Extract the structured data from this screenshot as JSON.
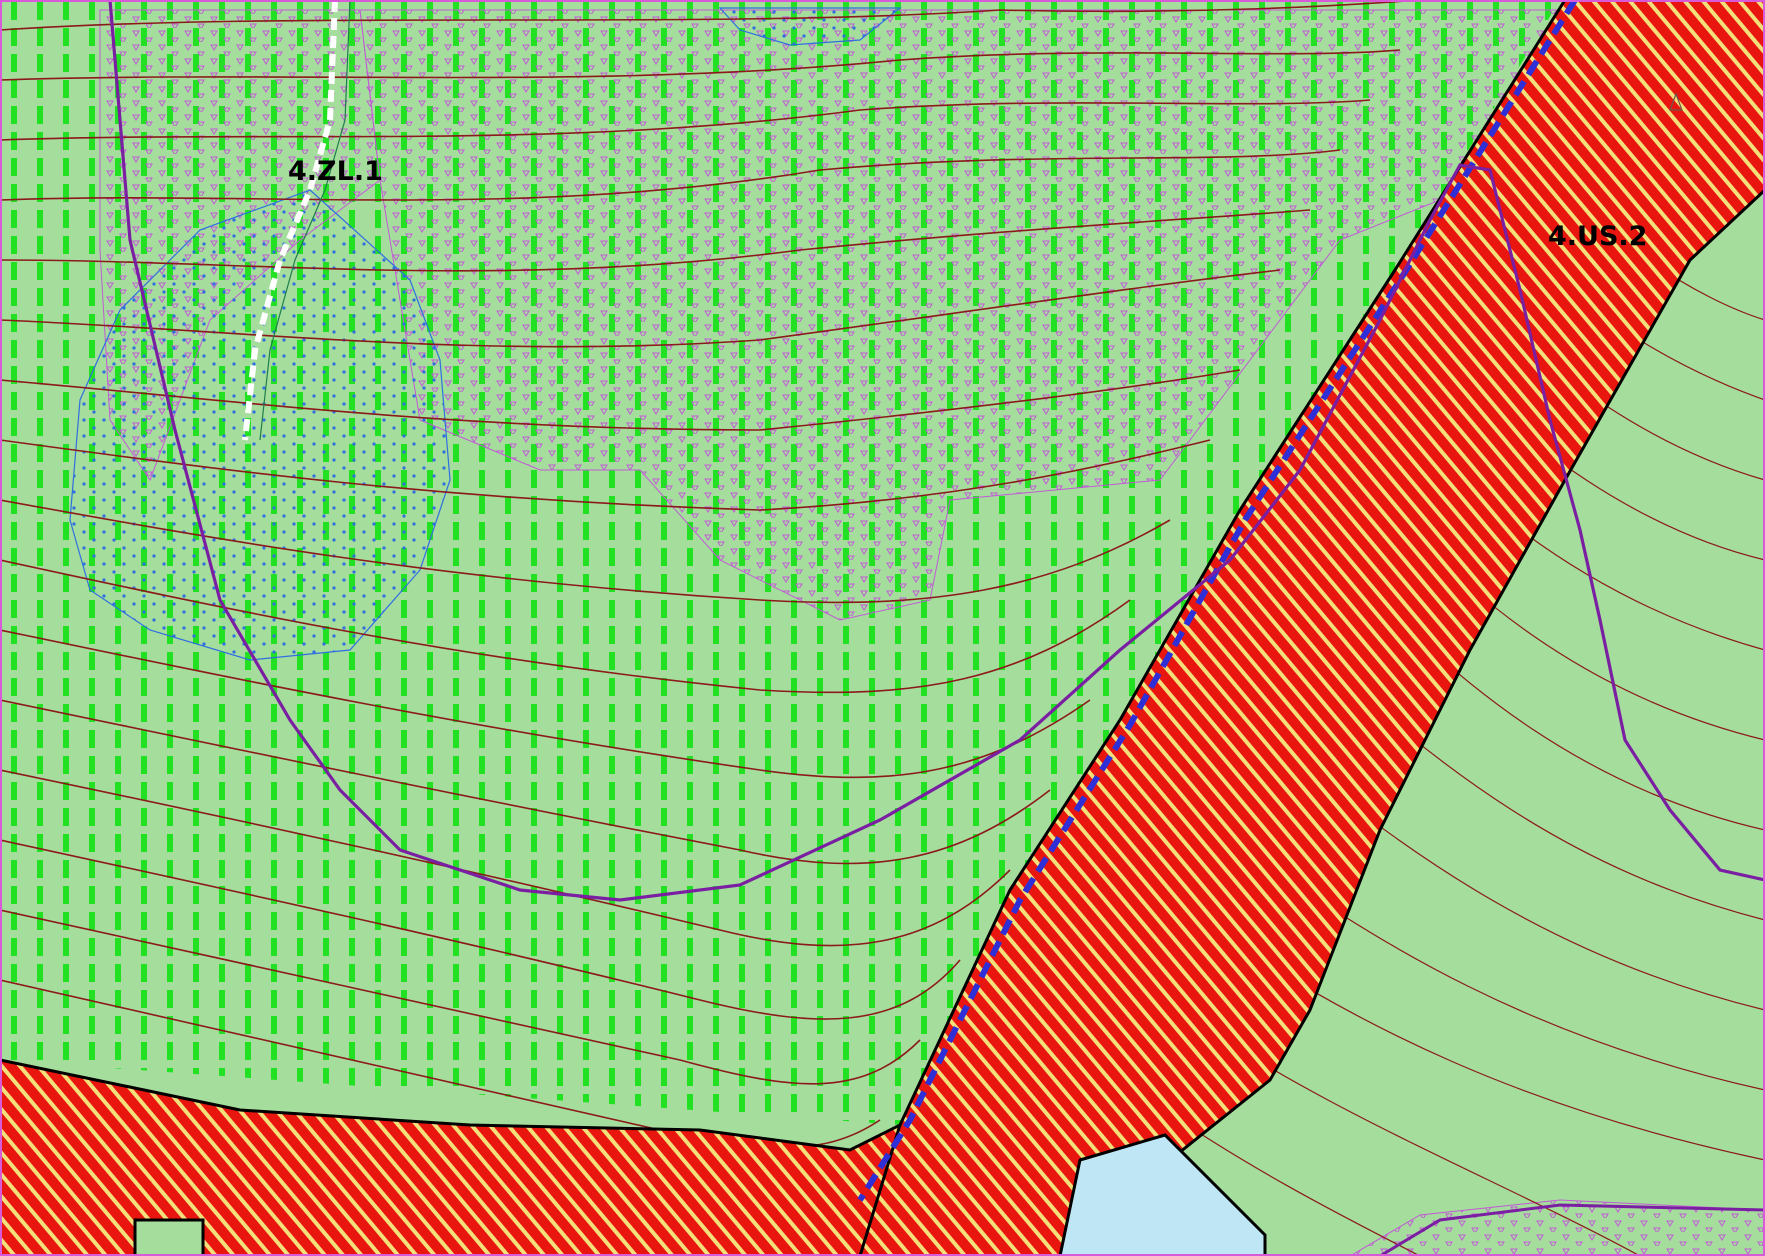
{
  "map": {
    "zones": {
      "forest_zone_label": "4.ZL.1",
      "service_zone_label": "4.US.2"
    },
    "colors": {
      "forest_fill": "#a3dc9a",
      "forest_hatch": "#22e022",
      "meadow_fill": "#a5dd9d",
      "road_red": "#e8160e",
      "road_stripe": "#f4e07a",
      "contour_line": "#8b1a1a",
      "contour_minor": "#6b5a4a",
      "contour_label": "#b8860b",
      "boundary_purple": "#7a1fa2",
      "dot_pattern_pink": "#c25ad6",
      "water_blue": "#2f6fe0",
      "water_light": "#bfe6f4",
      "frame_border": "#d85ad8"
    },
    "icons": [
      "north-arrow-icon"
    ]
  }
}
